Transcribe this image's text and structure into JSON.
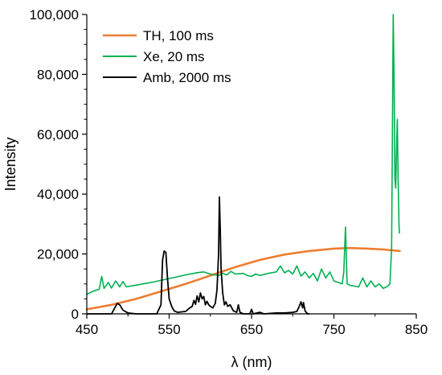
{
  "chart_data": {
    "type": "line",
    "xlabel": "λ (nm)",
    "ylabel": "Intensity",
    "xlim": [
      450,
      850
    ],
    "ylim": [
      0,
      100000
    ],
    "x_ticks": [
      450,
      550,
      650,
      750,
      850
    ],
    "x_tick_labels": [
      "450",
      "550",
      "650",
      "750",
      "850"
    ],
    "y_ticks": [
      0,
      20000,
      40000,
      60000,
      80000,
      100000
    ],
    "y_tick_labels": [
      "0",
      "20,000",
      "40,000",
      "60,000",
      "80,000",
      "100,000"
    ],
    "grid": false,
    "legend_position": "top-left",
    "series": [
      {
        "name": "TH, 100 ms",
        "color": "#ED7D31",
        "stroke_width": 2.6,
        "points": [
          [
            450,
            1500
          ],
          [
            480,
            3000
          ],
          [
            510,
            5000
          ],
          [
            540,
            7500
          ],
          [
            570,
            10000
          ],
          [
            600,
            12800
          ],
          [
            630,
            15600
          ],
          [
            660,
            18000
          ],
          [
            690,
            19800
          ],
          [
            720,
            21000
          ],
          [
            750,
            21800
          ],
          [
            770,
            22000
          ],
          [
            790,
            21800
          ],
          [
            810,
            21500
          ],
          [
            830,
            21000
          ]
        ]
      },
      {
        "name": "Xe, 20 ms",
        "color": "#00B050",
        "stroke_width": 1.6,
        "points": [
          [
            450,
            6500
          ],
          [
            458,
            7600
          ],
          [
            465,
            8200
          ],
          [
            468,
            12500
          ],
          [
            471,
            8500
          ],
          [
            476,
            10500
          ],
          [
            480,
            8600
          ],
          [
            485,
            11000
          ],
          [
            490,
            9000
          ],
          [
            494,
            10800
          ],
          [
            498,
            9000
          ],
          [
            510,
            9600
          ],
          [
            530,
            10600
          ],
          [
            550,
            11800
          ],
          [
            570,
            13000
          ],
          [
            585,
            13800
          ],
          [
            592,
            14000
          ],
          [
            600,
            13300
          ],
          [
            610,
            12800
          ],
          [
            615,
            13500
          ],
          [
            620,
            13000
          ],
          [
            625,
            14200
          ],
          [
            630,
            13300
          ],
          [
            640,
            13500
          ],
          [
            645,
            12800
          ],
          [
            650,
            12500
          ],
          [
            655,
            13300
          ],
          [
            660,
            12800
          ],
          [
            670,
            13500
          ],
          [
            680,
            14000
          ],
          [
            685,
            16000
          ],
          [
            690,
            13700
          ],
          [
            695,
            14500
          ],
          [
            700,
            13300
          ],
          [
            705,
            16000
          ],
          [
            710,
            12600
          ],
          [
            715,
            14000
          ],
          [
            720,
            12000
          ],
          [
            725,
            13500
          ],
          [
            730,
            11000
          ],
          [
            735,
            15000
          ],
          [
            740,
            12000
          ],
          [
            745,
            14000
          ],
          [
            750,
            11000
          ],
          [
            755,
            10500
          ],
          [
            760,
            10000
          ],
          [
            762,
            14000
          ],
          [
            764,
            29000
          ],
          [
            766,
            10000
          ],
          [
            770,
            9500
          ],
          [
            780,
            9000
          ],
          [
            785,
            12000
          ],
          [
            790,
            9000
          ],
          [
            795,
            11000
          ],
          [
            800,
            9000
          ],
          [
            805,
            10000
          ],
          [
            810,
            8500
          ],
          [
            815,
            9200
          ],
          [
            818,
            10000
          ],
          [
            820,
            22000
          ],
          [
            821,
            60000
          ],
          [
            822,
            100000
          ],
          [
            823,
            80000
          ],
          [
            824,
            45000
          ],
          [
            825,
            42000
          ],
          [
            826,
            55000
          ],
          [
            827,
            65000
          ],
          [
            828,
            45000
          ],
          [
            829,
            30000
          ],
          [
            829.5,
            27000
          ]
        ]
      },
      {
        "name": "Amb, 2000 ms",
        "color": "#000000",
        "stroke_width": 1.8,
        "points": [
          [
            450,
            0
          ],
          [
            480,
            0
          ],
          [
            484,
            2000
          ],
          [
            487,
            3500
          ],
          [
            490,
            3000
          ],
          [
            494,
            1200
          ],
          [
            500,
            300
          ],
          [
            510,
            0
          ],
          [
            535,
            0
          ],
          [
            540,
            3000
          ],
          [
            542,
            18000
          ],
          [
            544,
            21000
          ],
          [
            546,
            20500
          ],
          [
            548,
            12000
          ],
          [
            550,
            5000
          ],
          [
            553,
            2500
          ],
          [
            556,
            1000
          ],
          [
            560,
            500
          ],
          [
            570,
            800
          ],
          [
            575,
            2000
          ],
          [
            578,
            2500
          ],
          [
            580,
            4500
          ],
          [
            582,
            3200
          ],
          [
            584,
            6000
          ],
          [
            586,
            4000
          ],
          [
            588,
            7000
          ],
          [
            590,
            5000
          ],
          [
            592,
            5800
          ],
          [
            594,
            3000
          ],
          [
            596,
            4200
          ],
          [
            598,
            3000
          ],
          [
            600,
            2500
          ],
          [
            603,
            2000
          ],
          [
            606,
            3500
          ],
          [
            608,
            8000
          ],
          [
            610,
            20000
          ],
          [
            611,
            39000
          ],
          [
            612,
            28000
          ],
          [
            613,
            15000
          ],
          [
            615,
            7000
          ],
          [
            617,
            3000
          ],
          [
            619,
            4000
          ],
          [
            621,
            2500
          ],
          [
            624,
            3000
          ],
          [
            626,
            2000
          ],
          [
            628,
            1000
          ],
          [
            632,
            500
          ],
          [
            634,
            3000
          ],
          [
            636,
            500
          ],
          [
            640,
            0
          ],
          [
            648,
            0
          ],
          [
            650,
            1500
          ],
          [
            652,
            0
          ],
          [
            660,
            500
          ],
          [
            665,
            0
          ],
          [
            680,
            300
          ],
          [
            690,
            300
          ],
          [
            700,
            500
          ],
          [
            705,
            800
          ],
          [
            708,
            2500
          ],
          [
            710,
            4000
          ],
          [
            712,
            2000
          ],
          [
            713,
            3800
          ],
          [
            715,
            1000
          ],
          [
            718,
            0
          ],
          [
            720,
            0
          ]
        ]
      }
    ]
  }
}
